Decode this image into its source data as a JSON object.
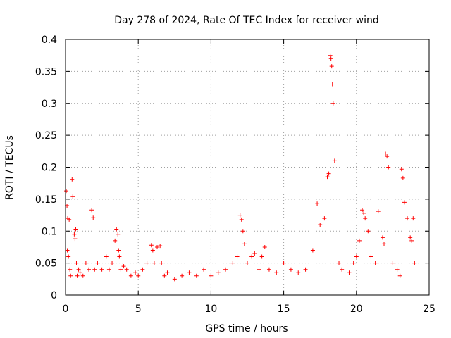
{
  "chart_data": {
    "type": "scatter",
    "title": "Day 278 of 2024, Rate Of TEC Index for receiver wind",
    "xlabel": "GPS time / hours",
    "ylabel": "ROTI / TECUs",
    "xlim": [
      0,
      25
    ],
    "ylim": [
      0,
      0.4
    ],
    "xticks": [
      "0",
      "5",
      "10",
      "15",
      "20",
      "25"
    ],
    "yticks": [
      "0",
      "0.05",
      "0.1",
      "0.15",
      "0.2",
      "0.25",
      "0.3",
      "0.35",
      "0.4"
    ],
    "grid": true,
    "marker": "plus",
    "color": "#ff0000",
    "series": [
      {
        "name": "ROTI",
        "x": [
          0.05,
          0.1,
          0.12,
          0.15,
          0.2,
          0.25,
          0.3,
          0.35,
          0.45,
          0.5,
          0.6,
          0.65,
          0.7,
          0.75,
          0.8,
          0.9,
          1.0,
          1.2,
          1.4,
          1.6,
          1.8,
          1.9,
          2.0,
          2.2,
          2.5,
          2.8,
          3.0,
          3.2,
          3.4,
          3.5,
          3.6,
          3.65,
          3.7,
          3.8,
          4.0,
          4.2,
          4.5,
          4.8,
          5.0,
          5.3,
          5.6,
          5.9,
          6.0,
          6.1,
          6.3,
          6.5,
          6.6,
          6.8,
          7.0,
          7.5,
          8.0,
          8.5,
          9.0,
          9.5,
          10.0,
          10.5,
          11.0,
          11.5,
          11.8,
          12.0,
          12.1,
          12.2,
          12.3,
          12.5,
          12.8,
          13.0,
          13.3,
          13.5,
          13.7,
          14.0,
          14.5,
          15.0,
          15.5,
          16.0,
          16.5,
          17.0,
          17.3,
          17.5,
          17.8,
          18.0,
          18.1,
          18.2,
          18.25,
          18.3,
          18.35,
          18.4,
          18.5,
          18.8,
          19.0,
          19.5,
          19.8,
          20.0,
          20.2,
          20.4,
          20.5,
          20.6,
          20.8,
          21.0,
          21.3,
          21.5,
          21.8,
          21.9,
          22.0,
          22.1,
          22.2,
          22.5,
          22.8,
          23.0,
          23.1,
          23.2,
          23.3,
          23.5,
          23.7,
          23.8,
          23.9,
          24.0
        ],
        "values": [
          0.163,
          0.14,
          0.07,
          0.12,
          0.06,
          0.118,
          0.04,
          0.03,
          0.181,
          0.154,
          0.095,
          0.088,
          0.103,
          0.05,
          0.03,
          0.04,
          0.035,
          0.03,
          0.05,
          0.04,
          0.133,
          0.121,
          0.04,
          0.05,
          0.04,
          0.06,
          0.04,
          0.05,
          0.085,
          0.103,
          0.095,
          0.07,
          0.06,
          0.04,
          0.045,
          0.04,
          0.03,
          0.035,
          0.03,
          0.04,
          0.05,
          0.078,
          0.07,
          0.05,
          0.075,
          0.077,
          0.05,
          0.03,
          0.035,
          0.025,
          0.03,
          0.035,
          0.03,
          0.04,
          0.03,
          0.035,
          0.04,
          0.05,
          0.06,
          0.125,
          0.118,
          0.1,
          0.08,
          0.05,
          0.06,
          0.065,
          0.04,
          0.06,
          0.075,
          0.04,
          0.035,
          0.05,
          0.04,
          0.035,
          0.04,
          0.07,
          0.143,
          0.11,
          0.12,
          0.185,
          0.19,
          0.375,
          0.37,
          0.358,
          0.33,
          0.3,
          0.21,
          0.05,
          0.04,
          0.035,
          0.05,
          0.06,
          0.085,
          0.133,
          0.128,
          0.12,
          0.1,
          0.06,
          0.05,
          0.131,
          0.09,
          0.08,
          0.221,
          0.217,
          0.2,
          0.05,
          0.04,
          0.03,
          0.197,
          0.183,
          0.145,
          0.12,
          0.09,
          0.085,
          0.12,
          0.05
        ]
      }
    ]
  }
}
